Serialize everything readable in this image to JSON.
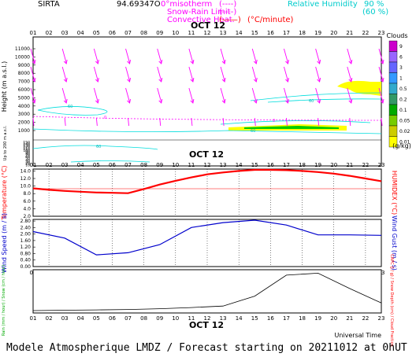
{
  "header": {
    "station": "SIRTA",
    "coords": "94.69347O",
    "legend_left": [
      {
        "label": "0°misotherm",
        "sample": "(----)",
        "color": "#ff00ff"
      },
      {
        "label": "Snow-Rain Limit",
        "sample": "(----)",
        "color": "#ff00ff"
      },
      {
        "label": "Convective Heat.",
        "sample": "(——)",
        "suffix": "(°C/minute)",
        "color": "#ff0000"
      }
    ],
    "legend_right": {
      "label": "Relative Humidity",
      "levels": [
        "90 %",
        "(60 %)"
      ],
      "color": "#00cccc"
    }
  },
  "x_hours": [
    "01",
    "02",
    "03",
    "04",
    "05",
    "06",
    "07",
    "08",
    "09",
    "10",
    "11",
    "12",
    "13",
    "14",
    "15",
    "16",
    "17",
    "18",
    "19",
    "20",
    "21",
    "22",
    "23"
  ],
  "date_label": "OCT 12",
  "footer": {
    "universal_time": "Universal Time",
    "model_line": "Modele Atmospherique LMDZ / Forecast starting on 20211012 at 0hUT"
  },
  "colors": {
    "temperature": "#ff0000",
    "humidex": "#ff0000",
    "wind": "#0000cc",
    "rain": "#00aa00",
    "snow": "#0000ff",
    "cloud_fraction": "#000000",
    "capc": "#ff0000",
    "wind_arrow": "#ff00ff",
    "rh": "#00dddd",
    "cloud_fill": "#ffff00"
  },
  "chart_data": [
    {
      "id": "upper-air",
      "type": "heatmap",
      "ylabel": "Height (m a.s.l.)",
      "ylabel_low": "Up to 200 m a.s.l.",
      "y_ticks": [
        "11000",
        "10000",
        "9000",
        "8000",
        "7000",
        "6000",
        "5000",
        "4000",
        "3000",
        "2000",
        "1000",
        "150",
        "140",
        "130",
        "120",
        "110",
        "100",
        "90",
        "80",
        "70",
        "60",
        "50",
        "40",
        "30",
        "20",
        "10"
      ],
      "colorbar": {
        "title": "Clouds",
        "unit": "(g/kg)",
        "ticks": [
          "9",
          "6",
          "3",
          "1",
          "0.5",
          "0.2",
          "0.1",
          "0.05",
          "0.02",
          "0.01"
        ],
        "colors": [
          "#cc00cc",
          "#9966ff",
          "#6666ff",
          "#3399ff",
          "#33aacc",
          "#339966",
          "#00aa00",
          "#77cc00",
          "#cccc00",
          "#ffff00"
        ]
      },
      "contour_labels": [
        "60",
        "40",
        "0",
        "60",
        "60",
        "60",
        "40",
        "0"
      ]
    },
    {
      "id": "temperature",
      "type": "line",
      "ylabel": "Temperature (°C)",
      "ylabel_right": "HUMIDEX (°C)",
      "y_ticks": [
        "14.0",
        "12.0",
        "10.0",
        "8.0",
        "6.0",
        "4.0",
        "2.0"
      ],
      "ylim": [
        2,
        14.5
      ],
      "x": [
        1,
        2,
        3,
        4,
        5,
        6,
        7,
        8,
        9,
        10,
        11,
        12,
        13,
        14,
        15,
        16,
        17,
        18,
        19,
        20,
        21,
        22,
        23
      ],
      "series": [
        {
          "values": [
            9.4,
            9.0,
            8.7,
            8.5,
            8.3,
            8.2,
            8.1,
            9.2,
            10.4,
            11.4,
            12.3,
            13.1,
            13.6,
            14.0,
            14.3,
            14.3,
            14.2,
            14.0,
            13.7,
            13.3,
            12.7,
            12.0,
            11.3
          ]
        }
      ]
    },
    {
      "id": "wind",
      "type": "line",
      "ylabel": "Wind Speed (m / s)",
      "ylabel_right": "Wind Gust (m / s)",
      "y_ticks": [
        "2.80",
        "2.40",
        "2.00",
        "1.60",
        "1.20",
        "0.80",
        "0.40",
        "0.00"
      ],
      "ylim": [
        0,
        2.9
      ],
      "x": [
        1,
        3,
        5,
        7,
        9,
        11,
        13,
        15,
        17,
        19,
        21,
        23
      ],
      "series": [
        {
          "values": [
            2.15,
            1.75,
            0.72,
            0.85,
            1.35,
            2.4,
            2.7,
            2.85,
            2.55,
            1.95,
            1.95,
            1.92
          ]
        }
      ]
    },
    {
      "id": "precip",
      "type": "line",
      "ylabel": "Rain (mm / hour) / Snow (cm / hour)",
      "ylabel_right": "CAPC (J / g) / Snow Depth (cm) / Cloud Fraction",
      "x": [
        1,
        3,
        5,
        7,
        9,
        11,
        13,
        15,
        17,
        19,
        21,
        23
      ],
      "series": [
        {
          "values": [
            0.02,
            0.03,
            0.04,
            0.05,
            0.07,
            0.1,
            0.14,
            0.4,
            0.95,
            1.0,
            0.6,
            0.22
          ]
        }
      ]
    }
  ]
}
